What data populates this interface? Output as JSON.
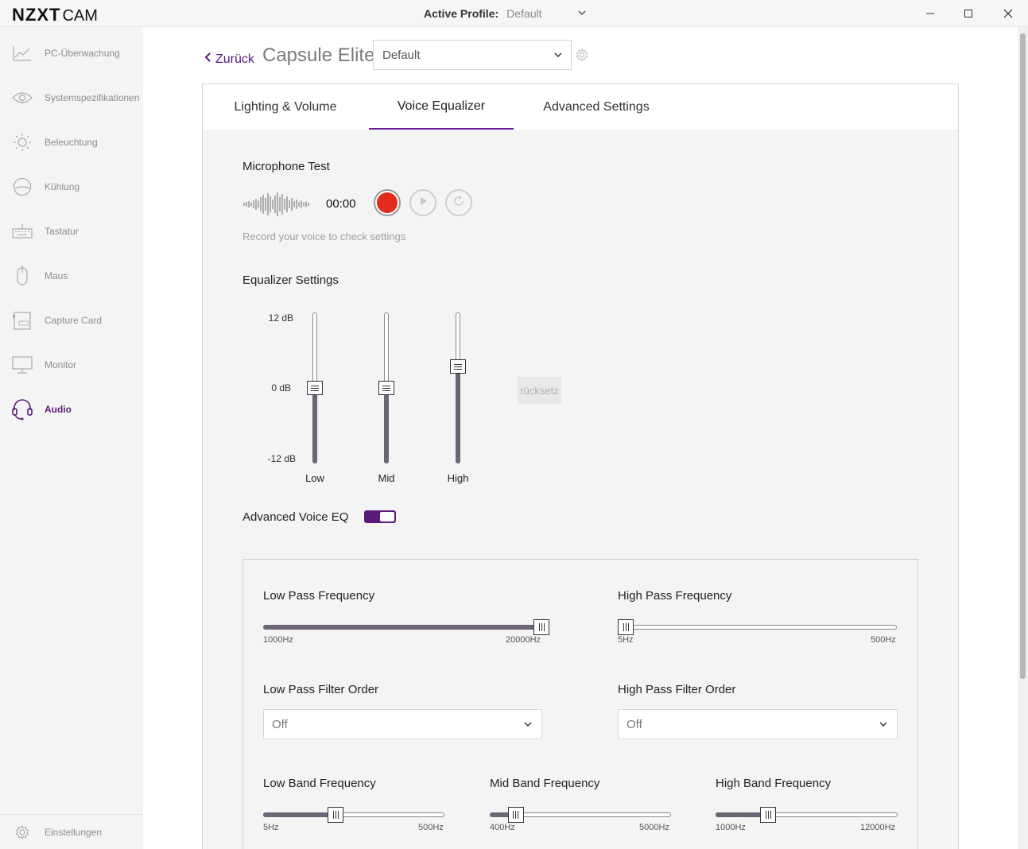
{
  "app": {
    "logo_bold": "NZXT",
    "logo_light": "CAM",
    "active_profile_label": "Active Profile:",
    "active_profile_value": "Default"
  },
  "sidebar": {
    "items": [
      {
        "label": "PC-Überwachung",
        "icon": "chart-line-icon"
      },
      {
        "label": "Systemspezifikationen",
        "icon": "eye-icon"
      },
      {
        "label": "Beleuchtung",
        "icon": "sun-icon"
      },
      {
        "label": "Kühlung",
        "icon": "fan-icon"
      },
      {
        "label": "Tastatur",
        "icon": "keyboard-icon"
      },
      {
        "label": "Maus",
        "icon": "mouse-icon"
      },
      {
        "label": "Capture Card",
        "icon": "capture-card-icon"
      },
      {
        "label": "Monitor",
        "icon": "monitor-icon"
      },
      {
        "label": "Audio",
        "icon": "headset-icon",
        "active": true
      }
    ],
    "settings_label": "Einstellungen"
  },
  "header": {
    "back_label": "Zurück",
    "device_name": "Capsule Elite",
    "profile_select": "Default"
  },
  "tabs": [
    {
      "label": "Lighting & Volume"
    },
    {
      "label": "Voice Equalizer",
      "active": true
    },
    {
      "label": "Advanced Settings"
    }
  ],
  "mic_test": {
    "title": "Microphone Test",
    "timer": "00:00",
    "hint": "Record your voice to check settings"
  },
  "equalizer": {
    "title": "Equalizer Settings",
    "db_labels": [
      "12 dB",
      "0 dB",
      "-12 dB"
    ],
    "bands": [
      {
        "label": "Low",
        "value_db": 0
      },
      {
        "label": "Mid",
        "value_db": 0
      },
      {
        "label": "High",
        "value_db": 3.4
      }
    ],
    "reset_label": "rücksetz"
  },
  "advanced_voice_eq": {
    "label": "Advanced Voice EQ",
    "enabled": true,
    "low_pass": {
      "title": "Low Pass Frequency",
      "min": "1000Hz",
      "max": "20000Hz",
      "fraction": 1.0
    },
    "high_pass": {
      "title": "High Pass Frequency",
      "min": "5Hz",
      "max": "500Hz",
      "fraction": 0.0
    },
    "low_pass_order": {
      "title": "Low Pass Filter Order",
      "value": "Off"
    },
    "high_pass_order": {
      "title": "High Pass Filter Order",
      "value": "Off"
    },
    "low_band": {
      "title": "Low Band Frequency",
      "min": "5Hz",
      "max": "500Hz",
      "fraction": 0.39
    },
    "mid_band": {
      "title": "Mid Band Frequency",
      "min": "400Hz",
      "max": "5000Hz",
      "fraction": 0.11
    },
    "high_band": {
      "title": "High Band Frequency",
      "min": "1000Hz",
      "max": "12000Hz",
      "fraction": 0.27
    }
  },
  "colors": {
    "accent": "#5b1a7a",
    "record": "#e12b1c",
    "slider_fill": "#6b6576"
  }
}
